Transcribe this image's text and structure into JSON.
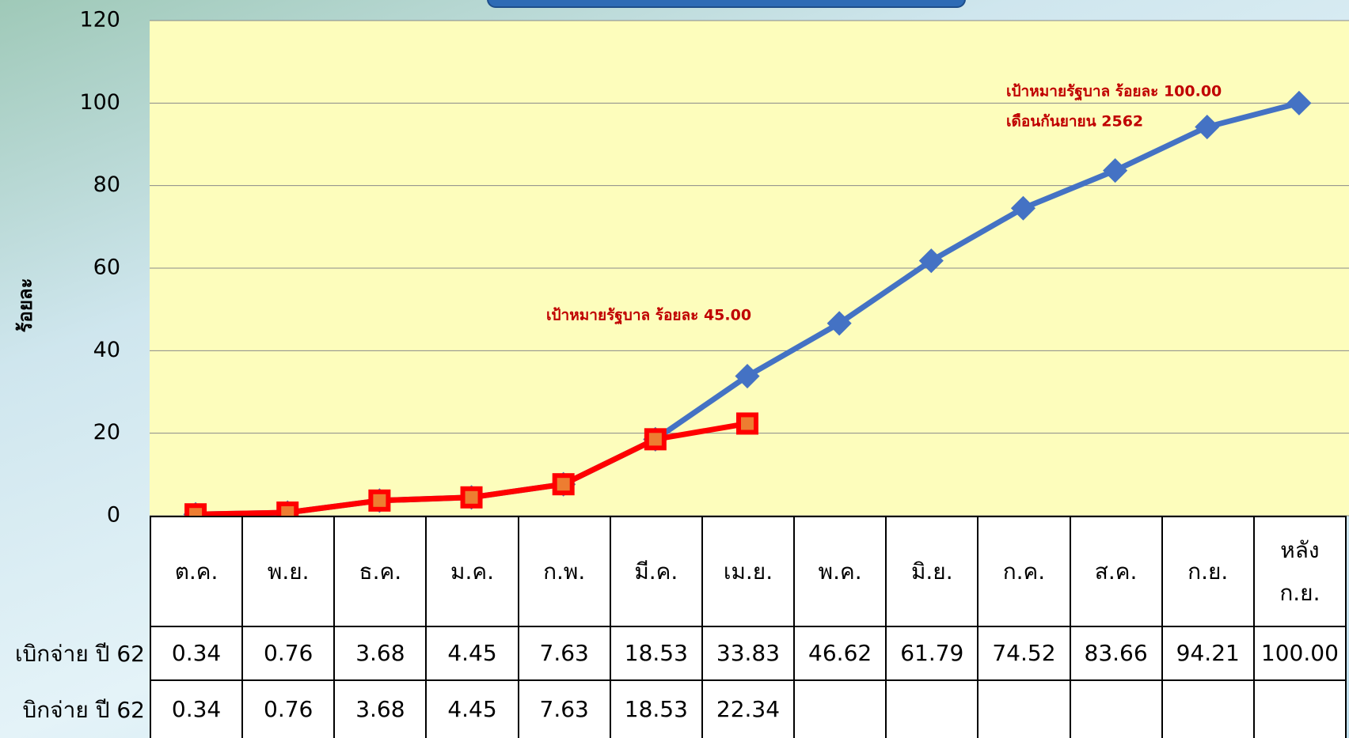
{
  "chart_data": {
    "type": "line",
    "y_axis_label": "ร้อยละ",
    "categories": [
      "ต.ค.",
      "พ.ย.",
      "ธ.ค.",
      "ม.ค.",
      "ก.พ.",
      "มี.ค.",
      "เม.ย.",
      "พ.ค.",
      "มิ.ย.",
      "ก.ค.",
      "ส.ค.",
      "ก.ย.",
      "หลัง ก.ย."
    ],
    "series": [
      {
        "name": "เบิกจ่าย ปี 62",
        "color": "#4472c4",
        "values": [
          0.34,
          0.76,
          3.68,
          4.45,
          7.63,
          18.53,
          33.83,
          46.62,
          61.79,
          74.52,
          83.66,
          94.21,
          100
        ],
        "value_labels": [
          "0.34",
          "0.76",
          "3.68",
          "4.45",
          "7.63",
          "18.53",
          "33.83",
          "46.62",
          "61.79",
          "74.52",
          "83.66",
          "94.21",
          "100.00"
        ]
      },
      {
        "name": "บิกจ่าย ปี 62",
        "color": "#ff0000",
        "values": [
          0.34,
          0.76,
          3.68,
          4.45,
          7.63,
          18.53,
          22.34,
          null,
          null,
          null,
          null,
          null,
          null
        ],
        "value_labels": [
          "0.34",
          "0.76",
          "3.68",
          "4.45",
          "7.63",
          "18.53",
          "22.34",
          null,
          null,
          null,
          null,
          null,
          null
        ]
      }
    ],
    "ylim": [
      0,
      120
    ],
    "yticks": [
      0,
      20,
      40,
      60,
      80,
      100,
      120
    ],
    "grid": true,
    "annotations": [
      "เป้าหมายรัฐบาล ร้อยละ 45.00",
      "เป้าหมายรัฐบาล ร้อยละ 100.00",
      "เดือนกันยายน 2562"
    ]
  }
}
